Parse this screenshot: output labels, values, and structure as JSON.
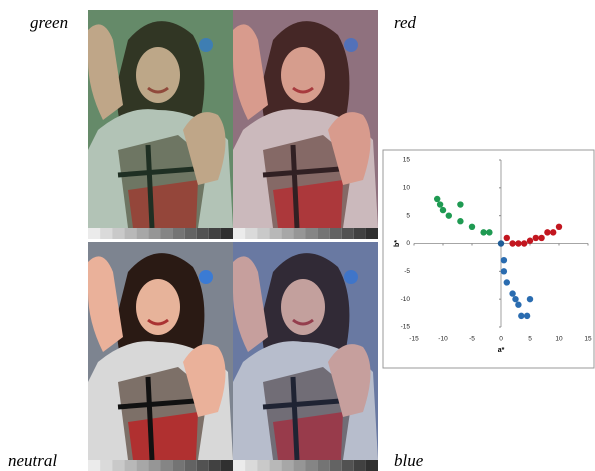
{
  "panels": [
    {
      "label": "green"
    },
    {
      "label": "red"
    },
    {
      "label": "neutral"
    },
    {
      "label": "blue"
    }
  ],
  "chart_data": {
    "type": "scatter",
    "xlabel": "a*",
    "ylabel": "b*",
    "xlim": [
      -15,
      15
    ],
    "ylim": [
      -15,
      15
    ],
    "xticks": [
      -15,
      -10,
      -5,
      0,
      5,
      10,
      15
    ],
    "yticks": [
      -15,
      -10,
      -5,
      0,
      5,
      10,
      15
    ],
    "series": [
      {
        "color": "#1f9a52",
        "x": [
          -11,
          -10.5,
          -10,
          -9,
          -7,
          -7,
          -5,
          -3,
          -2
        ],
        "y": [
          8,
          7,
          6,
          5,
          7,
          4,
          3,
          2,
          2
        ]
      },
      {
        "color": "#c2161f",
        "x": [
          1,
          2,
          3,
          4,
          5,
          6,
          7,
          8,
          9,
          10
        ],
        "y": [
          1,
          0,
          0,
          0,
          0.5,
          1,
          1,
          2,
          2,
          3
        ]
      },
      {
        "color": "#2a6cb0",
        "x": [
          0.5,
          0.5,
          1,
          2,
          2.5,
          3,
          3.5,
          4.5,
          5
        ],
        "y": [
          -3,
          -5,
          -7,
          -9,
          -10,
          -11,
          -13,
          -13,
          -10
        ]
      },
      {
        "color": "#1f5c96",
        "x": [
          0
        ],
        "y": [
          0
        ]
      }
    ]
  }
}
